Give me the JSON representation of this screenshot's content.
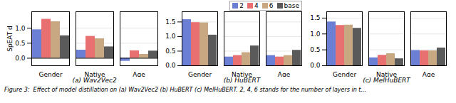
{
  "caption": "Figure 3:  Effect of model distillation on (a) Wav2Vec2 (b) HuBERT (c) MelHuBERT. 2, 4, 6 stands for the number of layers in t...",
  "chart_data": [
    {
      "type": "bar",
      "title": "(a) Wav2Vec2",
      "ylabel": "SpEAT d",
      "categories": [
        "Gender",
        "Native",
        "Age"
      ],
      "series": [
        {
          "name": "2",
          "color": "#6b7fd4",
          "values": [
            0.95,
            0.27,
            -0.1
          ]
        },
        {
          "name": "4",
          "color": "#e87070",
          "values": [
            1.3,
            0.73,
            0.25
          ]
        },
        {
          "name": "6",
          "color": "#c8a882",
          "values": [
            1.22,
            0.65,
            0.13
          ]
        },
        {
          "name": "base",
          "color": "#5a5a5a",
          "values": [
            0.75,
            0.38,
            0.24
          ]
        }
      ],
      "ylim": [
        -0.25,
        1.55
      ],
      "yticks": [
        {
          "value": 0,
          "label": "0.0"
        },
        0.5,
        {
          "value": 1.0,
          "label": "1.0"
        }
      ],
      "grid": true
    },
    {
      "type": "bar",
      "title": "(b) HuBERT",
      "categories": [
        "Gender",
        "Native",
        "Age"
      ],
      "series": [
        {
          "name": "2",
          "color": "#6b7fd4",
          "values": [
            1.58,
            0.3,
            0.35
          ]
        },
        {
          "name": "4",
          "color": "#e87070",
          "values": [
            1.48,
            0.35,
            0.3
          ]
        },
        {
          "name": "6",
          "color": "#c8a882",
          "values": [
            1.47,
            0.45,
            0.35
          ]
        },
        {
          "name": "base",
          "color": "#5a5a5a",
          "values": [
            1.05,
            0.68,
            0.53
          ]
        }
      ],
      "ylim": [
        0,
        1.85
      ],
      "yticks": [
        {
          "value": 0,
          "label": "0.0"
        },
        0.5,
        {
          "value": 1.0,
          "label": "1.0"
        },
        1.5
      ],
      "grid": true,
      "legend": "upper right"
    },
    {
      "type": "bar",
      "title": "(c) MelHuBERT",
      "categories": [
        "Gender",
        "Native",
        "Age"
      ],
      "series": [
        {
          "name": "2",
          "color": "#6b7fd4",
          "values": [
            1.38,
            0.25,
            0.48
          ]
        },
        {
          "name": "4",
          "color": "#e87070",
          "values": [
            1.27,
            0.33,
            0.47
          ]
        },
        {
          "name": "6",
          "color": "#c8a882",
          "values": [
            1.28,
            0.38,
            0.47
          ]
        },
        {
          "name": "base",
          "color": "#5a5a5a",
          "values": [
            1.18,
            0.22,
            0.56
          ]
        }
      ],
      "ylim": [
        0,
        1.7
      ],
      "yticks": [
        {
          "value": 0,
          "label": "0.0"
        },
        0.5,
        {
          "value": 1.0,
          "label": "1.0"
        },
        1.5
      ],
      "grid": true
    }
  ]
}
